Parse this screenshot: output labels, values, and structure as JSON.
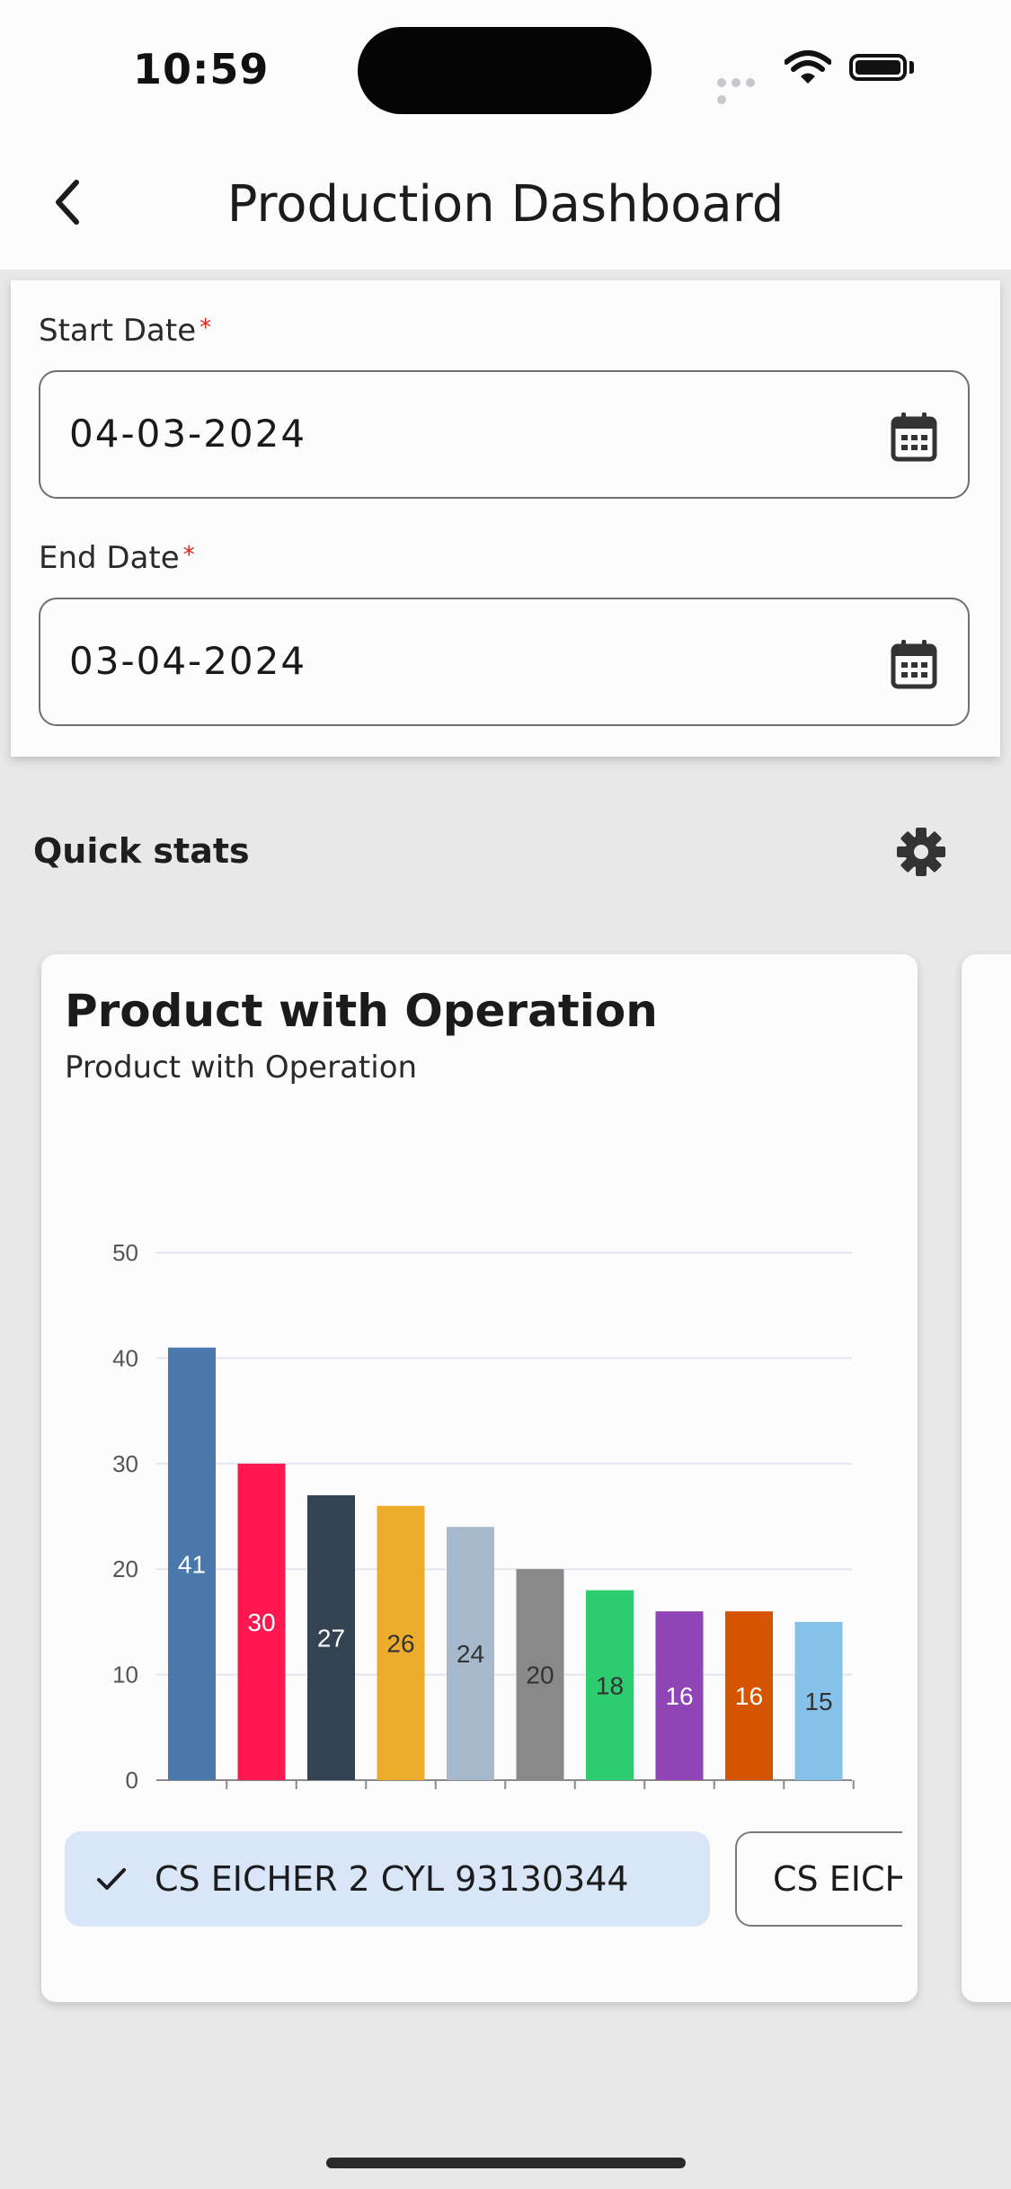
{
  "status_bar": {
    "time": "10:59"
  },
  "header": {
    "title": "Production Dashboard"
  },
  "filters": {
    "start_date_label": "Start Date",
    "start_date_value": "04-03-2024",
    "end_date_label": "End Date",
    "end_date_value": "03-04-2024",
    "required_marker": "*"
  },
  "quick_stats": {
    "label": "Quick stats"
  },
  "chart_card": {
    "title": "Product with Operation",
    "subtitle": "Product with Operation",
    "chips": [
      {
        "label": "CS EICHER 2 CYL 93130344",
        "selected": true
      },
      {
        "label": "CS EICHER",
        "selected": false
      }
    ]
  },
  "chart_data": {
    "type": "bar",
    "title": "Product with Operation",
    "subtitle": "Product with Operation",
    "xlabel": "",
    "ylabel": "",
    "ylim": [
      0,
      50
    ],
    "yticks": [
      0,
      10,
      20,
      30,
      40,
      50
    ],
    "grid": true,
    "data_labels": true,
    "values": [
      41,
      30,
      27,
      26,
      24,
      20,
      18,
      16,
      16,
      15
    ],
    "colors": [
      "#4a78ad",
      "#ff1750",
      "#334352",
      "#ecad2d",
      "#a6b8cc",
      "#898989",
      "#2dcc6f",
      "#8f45b5",
      "#d55400",
      "#85c1e8"
    ],
    "label_colors": [
      "#ffffff",
      "#ffffff",
      "#ffffff",
      "#333333",
      "#333333",
      "#333333",
      "#333333",
      "#ffffff",
      "#ffffff",
      "#333333"
    ]
  }
}
